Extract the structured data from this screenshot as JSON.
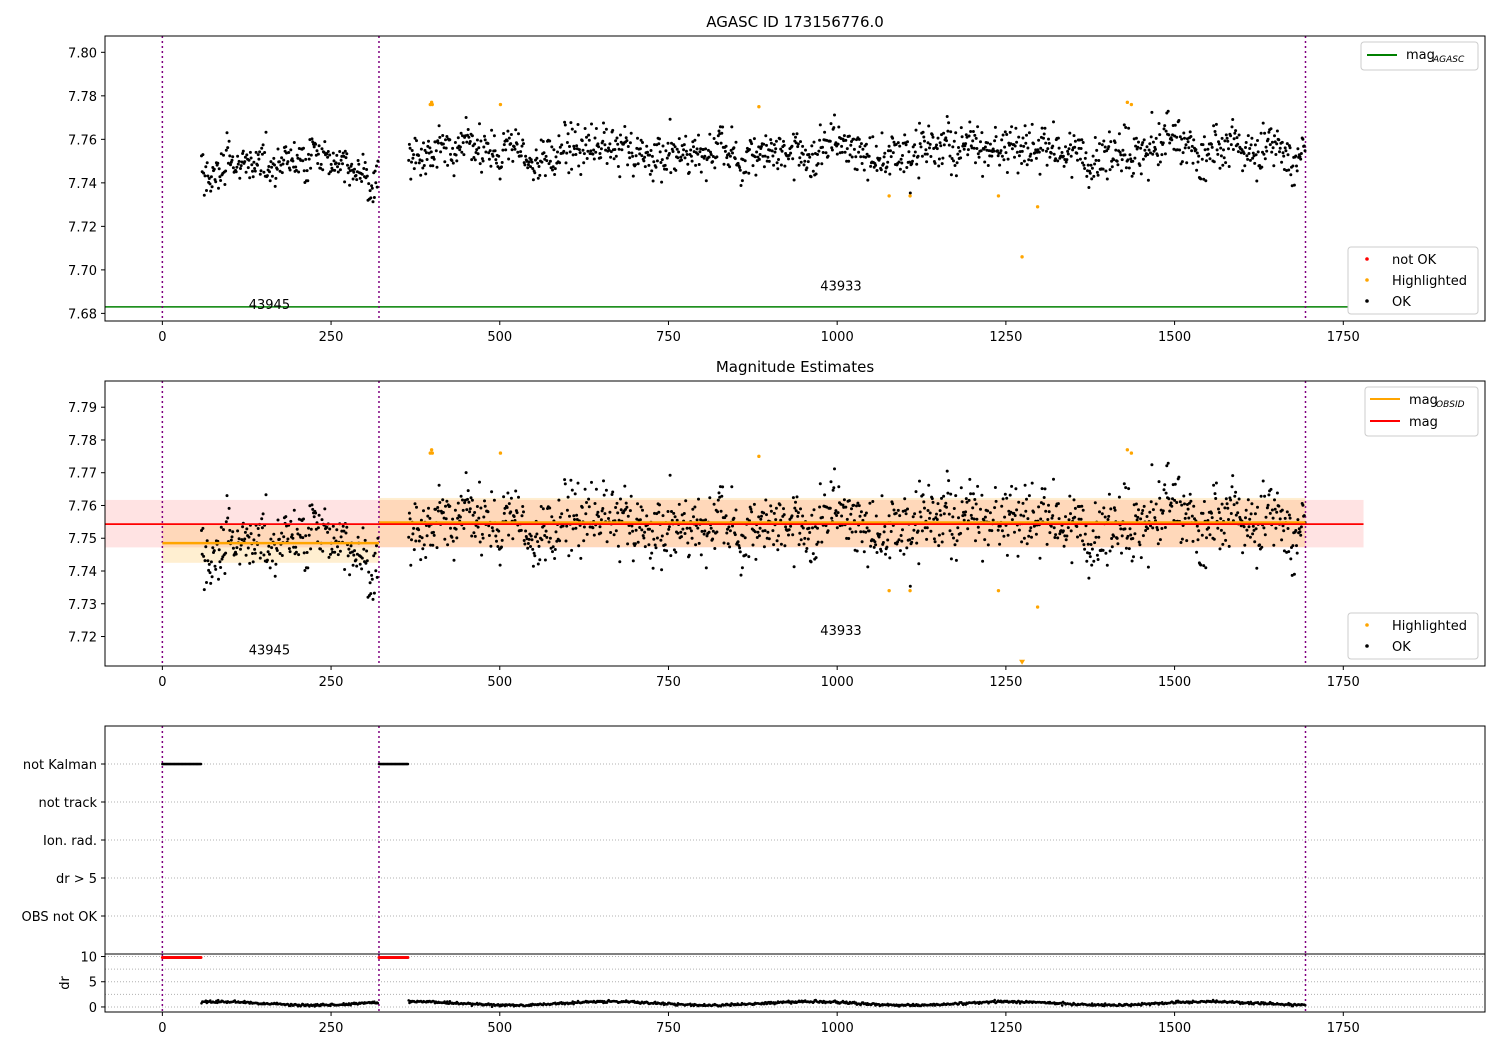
{
  "chart_data": [
    {
      "type": "scatter",
      "title": "AGASC ID 173156776.0",
      "xlim": [
        -85,
        1960
      ],
      "ylim": [
        7.6765,
        7.8075
      ],
      "xticks": [
        0,
        250,
        500,
        750,
        1000,
        1250,
        1500,
        1750
      ],
      "yticks": [
        7.68,
        7.7,
        7.72,
        7.74,
        7.76,
        7.78,
        7.8
      ],
      "grid": false,
      "obsid_boundaries": [
        0,
        321,
        1694
      ],
      "obsid_labels": [
        {
          "x": 128,
          "y": 7.682,
          "text": "43945"
        },
        {
          "x": 975,
          "y": 7.6905,
          "text": "43933"
        }
      ],
      "reference_line": {
        "name": "mag_AGASC",
        "y": 7.683
      },
      "segments": [
        {
          "x_start": 58,
          "x_end": 320,
          "base": 7.748,
          "trend": 0.004,
          "noise": 0.0045
        },
        {
          "x_start": 365,
          "x_end": 1694,
          "base": 7.755,
          "trend": 0.0,
          "noise": 0.005
        }
      ],
      "highlighted_points": [
        [
          397,
          7.776
        ],
        [
          399,
          7.777
        ],
        [
          400,
          7.776
        ],
        [
          501,
          7.776
        ],
        [
          884,
          7.775
        ],
        [
          1077,
          7.734
        ],
        [
          1108,
          7.734
        ],
        [
          1239,
          7.734
        ],
        [
          1274,
          7.706
        ],
        [
          1297,
          7.729
        ],
        [
          1430,
          7.777
        ],
        [
          1436,
          7.776
        ]
      ],
      "legend_top": {
        "placement": "top-right",
        "entries": [
          {
            "label": "mag",
            "sub": "AGASC",
            "color": "#008000"
          }
        ]
      },
      "legend_bottom": {
        "placement": "lower-right",
        "entries": [
          {
            "label": "not OK",
            "color": "#ff0000"
          },
          {
            "label": "Highlighted",
            "color": "#ffa500"
          },
          {
            "label": "OK",
            "color": "#000000"
          }
        ]
      }
    },
    {
      "type": "scatter",
      "title": "Magnitude Estimates",
      "xlim": [
        -85,
        1960
      ],
      "ylim": [
        7.711,
        7.798
      ],
      "xticks": [
        0,
        250,
        500,
        750,
        1000,
        1250,
        1500,
        1750
      ],
      "yticks": [
        7.72,
        7.73,
        7.74,
        7.75,
        7.76,
        7.77,
        7.78,
        7.79
      ],
      "grid": false,
      "obsid_boundaries": [
        0,
        321,
        1694
      ],
      "obsid_labels": [
        {
          "x": 128,
          "y": 7.7145,
          "text": "43945"
        },
        {
          "x": 975,
          "y": 7.7205,
          "text": "43933"
        }
      ],
      "mag": {
        "name": "mag",
        "y": 7.7543,
        "band": [
          7.7472,
          7.7617
        ],
        "x_range": [
          -85,
          1780
        ]
      },
      "mag_obsid": [
        {
          "x_start": 0,
          "x_end": 321,
          "y": 7.7485,
          "band": [
            7.7425,
            7.7545
          ]
        },
        {
          "x_start": 321,
          "x_end": 1694,
          "y": 7.7548,
          "band": [
            7.7473,
            7.7623
          ]
        }
      ],
      "off_scale_marker": {
        "x": 1274,
        "y": 7.712
      },
      "legend_top": {
        "placement": "top-right",
        "entries": [
          {
            "label": "mag",
            "sub": "OBSID",
            "color": "#ffa500"
          },
          {
            "label": "mag",
            "sub": "",
            "color": "#ff0000"
          }
        ]
      },
      "legend_bottom": {
        "placement": "lower-right",
        "entries": [
          {
            "label": "Highlighted",
            "color": "#ffa500"
          },
          {
            "label": "OK",
            "color": "#000000"
          }
        ]
      }
    },
    {
      "type": "scatter",
      "title": "",
      "xlim": [
        -85,
        1960
      ],
      "xticks": [
        0,
        250,
        500,
        750,
        1000,
        1250,
        1500,
        1750
      ],
      "flag_rows": [
        "not Kalman",
        "not track",
        "Ion. rad.",
        "dr > 5",
        "OBS not OK"
      ],
      "flag_spans": [
        {
          "row": "not Kalman",
          "x_start": 0,
          "x_end": 58
        },
        {
          "row": "not Kalman",
          "x_start": 321,
          "x_end": 365
        }
      ],
      "dr_axis": {
        "ylabel": "dr",
        "ylim": [
          -1,
          10.5
        ],
        "yticks": [
          0,
          5,
          10
        ]
      },
      "dr_high_spans": [
        {
          "x_start": 0,
          "x_end": 58,
          "y": 9.8
        },
        {
          "x_start": 321,
          "x_end": 365,
          "y": 9.8
        }
      ],
      "dr_baseline": {
        "x_start": 58,
        "x_end": 1694,
        "y": 0.7
      }
    }
  ]
}
